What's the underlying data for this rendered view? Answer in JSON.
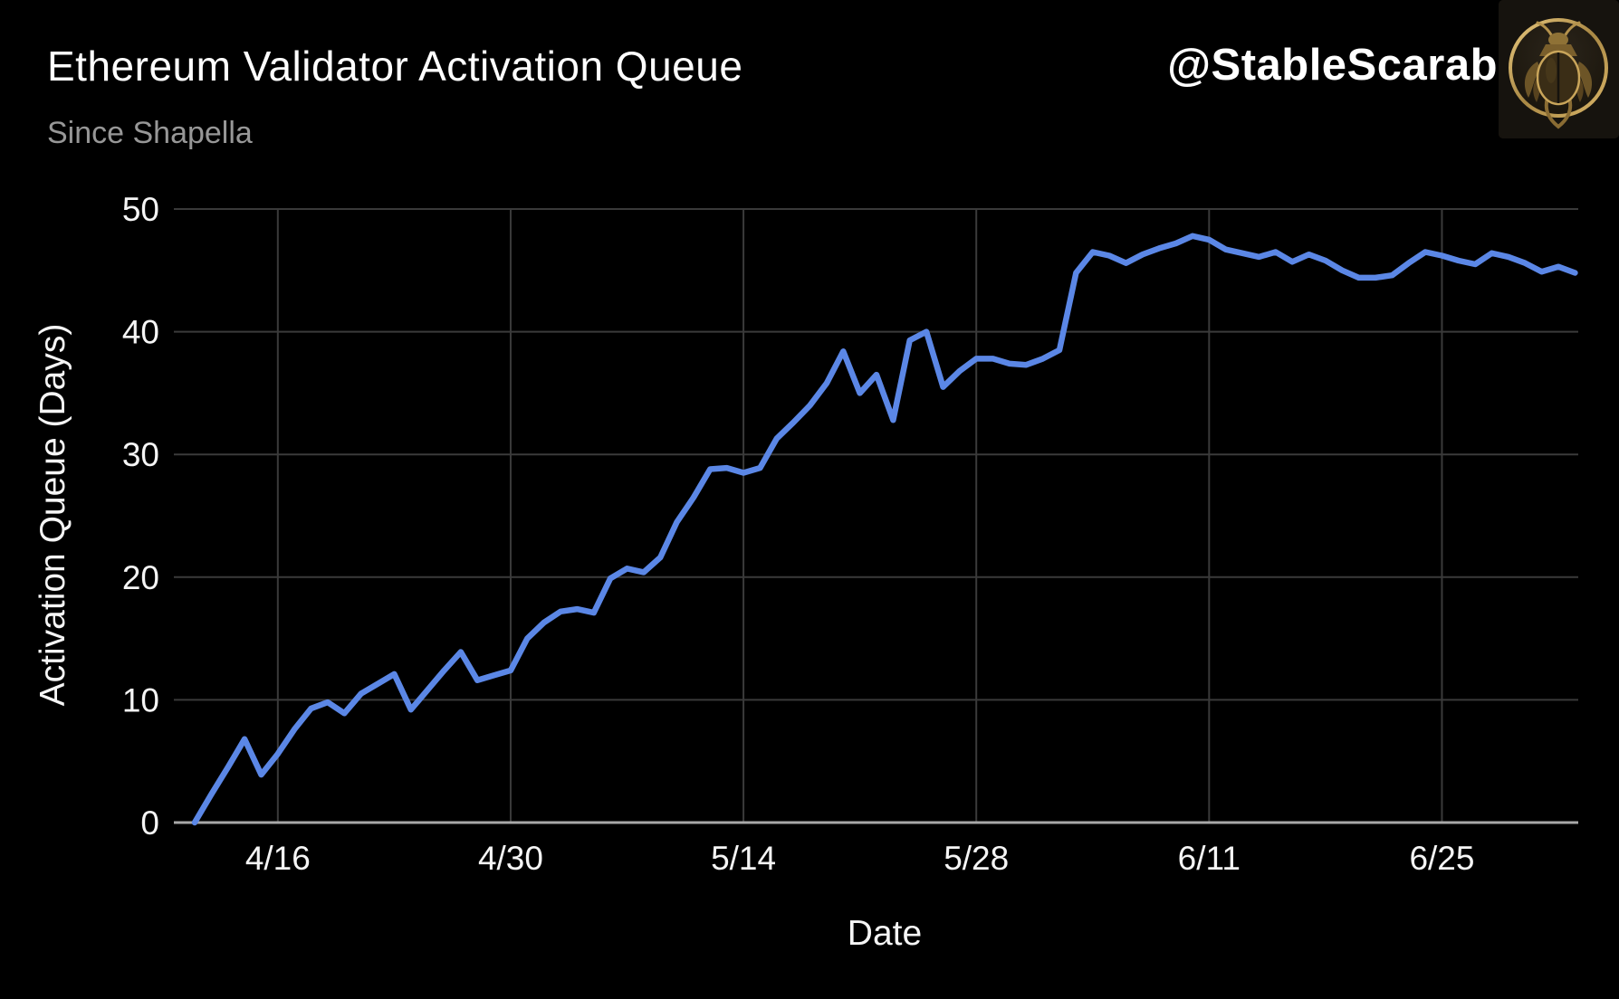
{
  "header": {
    "title": "Ethereum Validator Activation Queue",
    "subtitle": "Since Shapella",
    "handle": "@StableScarab",
    "logo_icon": "scarab-beetle-logo"
  },
  "colors": {
    "background": "#000000",
    "line": "#5B87E6",
    "grid": "#3a3a3a",
    "axis_line": "#a8a8a8",
    "tick_text": "#f5f5f5",
    "title_text": "#ffffff",
    "subtitle_text": "#979797",
    "logo_gold": "#c9a55a",
    "logo_bg": "#16130e"
  },
  "chart_data": {
    "type": "line",
    "title": "Ethereum Validator Activation Queue",
    "subtitle": "Since Shapella",
    "xlabel": "Date",
    "ylabel": "Activation Queue (Days)",
    "ylim": [
      0,
      50
    ],
    "grid": true,
    "legend": "none",
    "y_ticks": [
      0,
      10,
      20,
      30,
      40,
      50
    ],
    "x_ticks": [
      {
        "label": "4/16",
        "index": 5
      },
      {
        "label": "4/30",
        "index": 19
      },
      {
        "label": "5/14",
        "index": 33
      },
      {
        "label": "5/28",
        "index": 47
      },
      {
        "label": "6/11",
        "index": 61
      },
      {
        "label": "6/25",
        "index": 75
      }
    ],
    "series": [
      {
        "name": "Activation Queue (Days)",
        "x": [
          "4/11",
          "4/12",
          "4/13",
          "4/14",
          "4/15",
          "4/16",
          "4/17",
          "4/18",
          "4/19",
          "4/20",
          "4/21",
          "4/22",
          "4/23",
          "4/24",
          "4/25",
          "4/26",
          "4/27",
          "4/28",
          "4/29",
          "4/30",
          "5/1",
          "5/2",
          "5/3",
          "5/4",
          "5/5",
          "5/6",
          "5/7",
          "5/8",
          "5/9",
          "5/10",
          "5/11",
          "5/12",
          "5/13",
          "5/14",
          "5/15",
          "5/16",
          "5/17",
          "5/18",
          "5/19",
          "5/20",
          "5/21",
          "5/22",
          "5/23",
          "5/24",
          "5/25",
          "5/26",
          "5/27",
          "5/28",
          "5/29",
          "5/30",
          "5/31",
          "6/1",
          "6/2",
          "6/3",
          "6/4",
          "6/5",
          "6/6",
          "6/7",
          "6/8",
          "6/9",
          "6/10",
          "6/11",
          "6/12",
          "6/13",
          "6/14",
          "6/15",
          "6/16",
          "6/17",
          "6/18",
          "6/19",
          "6/20",
          "6/21",
          "6/22",
          "6/23",
          "6/24",
          "6/25",
          "6/26",
          "6/27",
          "6/28",
          "6/29",
          "6/30",
          "7/1",
          "7/2",
          "7/3"
        ],
        "values": [
          0,
          2.3,
          4.5,
          6.8,
          3.9,
          5.6,
          7.6,
          9.3,
          9.8,
          8.9,
          10.5,
          11.3,
          12.1,
          9.2,
          10.8,
          12.4,
          13.9,
          11.6,
          12.0,
          12.4,
          15.0,
          16.3,
          17.2,
          17.4,
          17.1,
          19.9,
          20.7,
          20.4,
          21.6,
          24.5,
          26.5,
          28.8,
          28.9,
          28.5,
          28.9,
          31.3,
          32.6,
          34.0,
          35.8,
          38.4,
          35.0,
          36.5,
          32.8,
          39.3,
          40.0,
          35.5,
          36.8,
          37.8,
          37.8,
          37.4,
          37.3,
          37.8,
          38.5,
          44.8,
          46.5,
          46.2,
          45.6,
          46.3,
          46.8,
          47.2,
          47.8,
          47.5,
          46.7,
          46.4,
          46.1,
          46.5,
          45.7,
          46.3,
          45.8,
          45.0,
          44.4,
          44.4,
          44.6,
          45.6,
          46.5,
          46.2,
          45.8,
          45.5,
          46.4,
          46.1,
          45.6,
          44.9,
          45.3,
          44.8
        ]
      }
    ]
  }
}
